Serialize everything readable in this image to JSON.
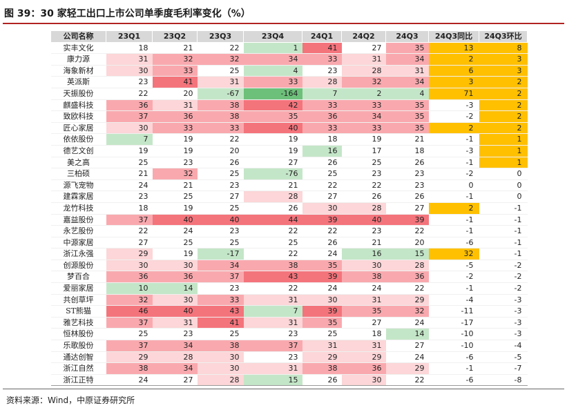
{
  "title": "图 39：30 家轻工出口上市公司单季度毛利率变化（%）",
  "source": "资料来源：Wind，中原证券研究所",
  "colors": {
    "red_strong": "#f4747c",
    "red_mid": "#f9a9ae",
    "red_light": "#fcd6d8",
    "green_strong": "#6dc07a",
    "green_light": "#c4e6c8",
    "highlight": "#ffc000"
  },
  "table": {
    "headers": [
      "公司名称",
      "23Q1",
      "23Q2",
      "23Q3",
      "23Q4",
      "24Q1",
      "24Q2",
      "24Q3",
      "24Q3同比",
      "24Q3环比"
    ],
    "rows": [
      {
        "name": "实丰文化",
        "values": [
          "18",
          "21",
          "22",
          "1",
          "41",
          "27",
          "35",
          "13",
          "8"
        ]
      },
      {
        "name": "康力源",
        "values": [
          "31",
          "32",
          "32",
          "34",
          "33",
          "31",
          "34",
          "2",
          "3"
        ]
      },
      {
        "name": "海象新材",
        "values": [
          "30",
          "33",
          "25",
          "4",
          "23",
          "28",
          "31",
          "6",
          "3"
        ]
      },
      {
        "name": "英派斯",
        "values": [
          "23",
          "41",
          "31",
          "33",
          "28",
          "32",
          "34",
          "3",
          "2"
        ]
      },
      {
        "name": "天振股份",
        "values": [
          "22",
          "20",
          "-67",
          "-164",
          "7",
          "2",
          "4",
          "71",
          "2"
        ]
      },
      {
        "name": "麒盛科技",
        "values": [
          "36",
          "31",
          "38",
          "42",
          "33",
          "33",
          "35",
          "-3",
          "2"
        ]
      },
      {
        "name": "致欧科技",
        "values": [
          "37",
          "36",
          "38",
          "35",
          "36",
          "34",
          "35",
          "-2",
          "2"
        ]
      },
      {
        "name": "匠心家居",
        "values": [
          "30",
          "33",
          "33",
          "40",
          "33",
          "33",
          "35",
          "2",
          "2"
        ]
      },
      {
        "name": "依依股份",
        "values": [
          "7",
          "19",
          "22",
          "19",
          "18",
          "19",
          "21",
          "-1",
          "1"
        ]
      },
      {
        "name": "德艺文创",
        "values": [
          "19",
          "19",
          "20",
          "19",
          "16",
          "17",
          "18",
          "-3",
          "1"
        ]
      },
      {
        "name": "美之高",
        "values": [
          "25",
          "23",
          "26",
          "27",
          "26",
          "25",
          "26",
          "-1",
          "1"
        ]
      },
      {
        "name": "三柏硕",
        "values": [
          "21",
          "32",
          "25",
          "-76",
          "25",
          "23",
          "23",
          "-2",
          "0"
        ]
      },
      {
        "name": "源飞宠物",
        "values": [
          "24",
          "21",
          "23",
          "21",
          "22",
          "22",
          "23",
          "0",
          "0"
        ]
      },
      {
        "name": "建霖家居",
        "values": [
          "23",
          "25",
          "27",
          "28",
          "27",
          "26",
          "26",
          "-1",
          "0"
        ]
      },
      {
        "name": "龙竹科技",
        "values": [
          "18",
          "19",
          "25",
          "26",
          "30",
          "28",
          "27",
          "2",
          "-1"
        ]
      },
      {
        "name": "嘉益股份",
        "values": [
          "37",
          "40",
          "40",
          "44",
          "39",
          "40",
          "39",
          "-1",
          "-1"
        ]
      },
      {
        "name": "永艺股份",
        "values": [
          "22",
          "24",
          "23",
          "22",
          "22",
          "23",
          "22",
          "-1",
          "-1"
        ]
      },
      {
        "name": "中源家居",
        "values": [
          "27",
          "25",
          "25",
          "25",
          "26",
          "21",
          "20",
          "-6",
          "-1"
        ]
      },
      {
        "name": "浙江永强",
        "values": [
          "29",
          "19",
          "-17",
          "22",
          "24",
          "16",
          "15",
          "32",
          "-1"
        ]
      },
      {
        "name": "创源股份",
        "values": [
          "30",
          "30",
          "34",
          "38",
          "35",
          "30",
          "28",
          "-5",
          "-2"
        ]
      },
      {
        "name": "梦百合",
        "values": [
          "36",
          "36",
          "37",
          "43",
          "39",
          "38",
          "36",
          "-2",
          "-2"
        ]
      },
      {
        "name": "爱丽家居",
        "values": [
          "10",
          "14",
          "23",
          "22",
          "24",
          "24",
          "22",
          "-1",
          "-2"
        ]
      },
      {
        "name": "共创草坪",
        "values": [
          "32",
          "30",
          "33",
          "31",
          "30",
          "31",
          "29",
          "-4",
          "-3"
        ]
      },
      {
        "name": "ST熊猫",
        "values": [
          "46",
          "40",
          "43",
          "7",
          "39",
          "35",
          "32",
          "-11",
          "-3"
        ]
      },
      {
        "name": "雅艺科技",
        "values": [
          "37",
          "31",
          "41",
          "31",
          "35",
          "27",
          "24",
          "-17",
          "-3"
        ]
      },
      {
        "name": "恒林股份",
        "values": [
          "25",
          "23",
          "25",
          "23",
          "25",
          "18",
          "14",
          "-10",
          "-3"
        ]
      },
      {
        "name": "乐歌股份",
        "values": [
          "37",
          "34",
          "38",
          "37",
          "31",
          "31",
          "27",
          "-10",
          "-4"
        ]
      },
      {
        "name": "通达创智",
        "values": [
          "29",
          "28",
          "30",
          "23",
          "29",
          "29",
          "24",
          "-6",
          "-5"
        ]
      },
      {
        "name": "浙江自然",
        "values": [
          "38",
          "34",
          "30",
          "31",
          "38",
          "36",
          "29",
          "-1",
          "-7"
        ]
      },
      {
        "name": "浙江正特",
        "values": [
          "24",
          "27",
          "28",
          "15",
          "26",
          "30",
          "22",
          "-6",
          "-8"
        ]
      }
    ]
  }
}
